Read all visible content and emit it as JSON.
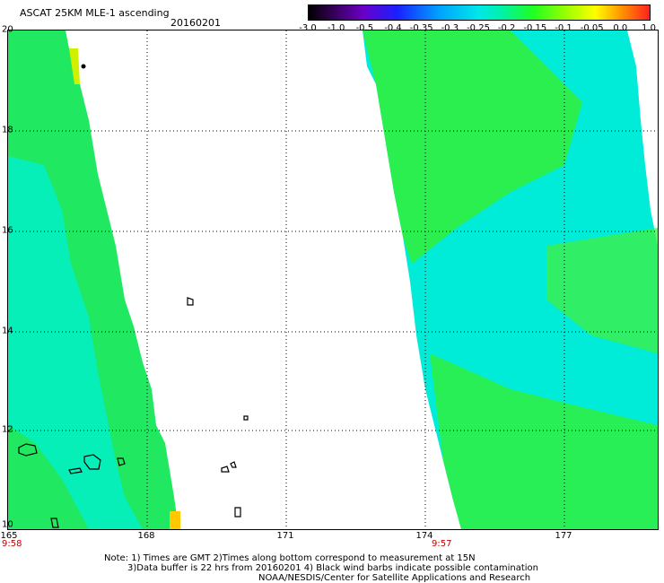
{
  "header": {
    "title": "ASCAT 25KM MLE-1 ascending",
    "date": "20160201"
  },
  "colorbar": {
    "ticks": [
      "-3.0",
      "-1.0",
      "-0.5",
      "-0.4",
      "-0.35",
      "-0.3",
      "-0.25",
      "-0.2",
      "-0.15",
      "-0.1",
      "-0.05",
      "0.0",
      "1.0"
    ],
    "colors": [
      "#000000",
      "#3a0060",
      "#6a00c8",
      "#1a20ff",
      "#00a0ff",
      "#00e8e8",
      "#00f0b0",
      "#20ff20",
      "#a0ff00",
      "#ffff00",
      "#ff9000",
      "#ff2020"
    ]
  },
  "axes": {
    "y_ticks": [
      "20",
      "18",
      "16",
      "14",
      "12",
      "10"
    ],
    "x_ticks": [
      "165",
      "168",
      "171",
      "174",
      "177"
    ],
    "times": [
      "9:58",
      "9:57"
    ]
  },
  "notes": {
    "line1": "Note: 1) Times are GMT 2)Times along bottom correspond to measurement at 15N",
    "line2": "3)Data buffer is 22 hrs from 20160201 4) Black wind barbs indicate possible contamination",
    "line3": "NOAA/NESDIS/Center for Satellite Applications and Research"
  }
}
